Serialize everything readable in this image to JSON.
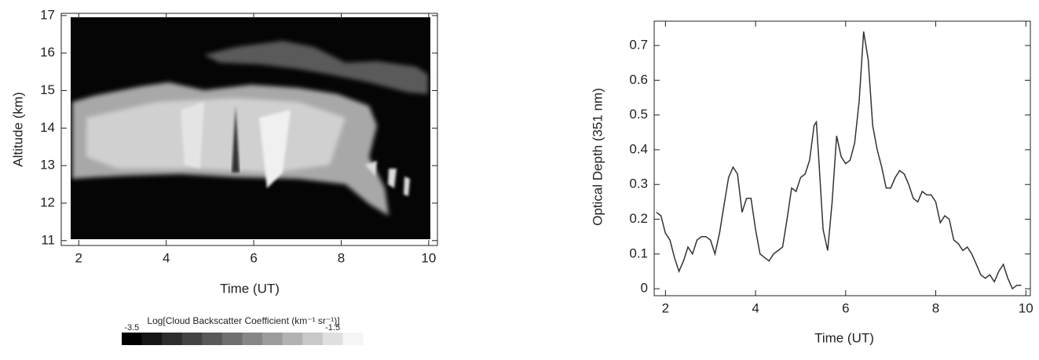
{
  "chart_data": [
    {
      "type": "heatmap",
      "xlabel": "Time (UT)",
      "ylabel": "Altitude (km)",
      "xlim": [
        1.6,
        10.2
      ],
      "xticks": [
        2,
        4,
        6,
        8,
        10
      ],
      "ylim": [
        10.87,
        17.06
      ],
      "yticks": [
        11,
        12,
        13,
        14,
        15,
        16,
        17
      ],
      "colorbar": {
        "label": "Log[Cloud Backscatter Coefficient (km⁻¹ sr⁻¹)]",
        "lim": [
          -3.6,
          -1.2
        ],
        "ticks": [
          -3.5,
          -1.5
        ]
      }
    },
    {
      "type": "line",
      "xlabel": "Time (UT)",
      "ylabel": "Optical Depth (351 nm)",
      "color": "#333333",
      "xlim": [
        1.75,
        10.1
      ],
      "xticks": [
        2,
        4,
        6,
        8,
        10
      ],
      "ylim": [
        -0.02,
        0.77
      ],
      "yticks": [
        0,
        0.1,
        0.2,
        0.3,
        0.4,
        0.5,
        0.6,
        0.7
      ],
      "x": [
        1.8,
        1.9,
        2.0,
        2.1,
        2.2,
        2.3,
        2.4,
        2.5,
        2.6,
        2.7,
        2.8,
        2.9,
        3.0,
        3.1,
        3.2,
        3.3,
        3.4,
        3.5,
        3.6,
        3.7,
        3.8,
        3.9,
        4.0,
        4.1,
        4.2,
        4.3,
        4.4,
        4.5,
        4.6,
        4.7,
        4.8,
        4.9,
        5.0,
        5.1,
        5.2,
        5.3,
        5.35,
        5.4,
        5.5,
        5.6,
        5.7,
        5.8,
        5.9,
        6.0,
        6.1,
        6.2,
        6.3,
        6.4,
        6.5,
        6.6,
        6.7,
        6.8,
        6.9,
        7.0,
        7.1,
        7.2,
        7.3,
        7.4,
        7.5,
        7.6,
        7.7,
        7.8,
        7.9,
        8.0,
        8.1,
        8.2,
        8.3,
        8.4,
        8.5,
        8.6,
        8.7,
        8.8,
        8.9,
        9.0,
        9.1,
        9.2,
        9.3,
        9.4,
        9.5,
        9.6,
        9.7,
        9.8,
        9.9
      ],
      "values": [
        0.22,
        0.21,
        0.16,
        0.14,
        0.09,
        0.05,
        0.08,
        0.12,
        0.1,
        0.14,
        0.15,
        0.15,
        0.14,
        0.1,
        0.16,
        0.24,
        0.32,
        0.35,
        0.33,
        0.22,
        0.26,
        0.26,
        0.17,
        0.1,
        0.09,
        0.08,
        0.1,
        0.11,
        0.12,
        0.2,
        0.29,
        0.28,
        0.32,
        0.33,
        0.37,
        0.47,
        0.48,
        0.38,
        0.17,
        0.11,
        0.25,
        0.44,
        0.38,
        0.36,
        0.37,
        0.42,
        0.54,
        0.74,
        0.66,
        0.47,
        0.4,
        0.35,
        0.29,
        0.29,
        0.32,
        0.34,
        0.33,
        0.3,
        0.26,
        0.25,
        0.28,
        0.27,
        0.27,
        0.25,
        0.19,
        0.21,
        0.2,
        0.14,
        0.13,
        0.11,
        0.12,
        0.1,
        0.07,
        0.04,
        0.03,
        0.04,
        0.02,
        0.05,
        0.07,
        0.03,
        0.0,
        0.01,
        0.01
      ]
    }
  ]
}
